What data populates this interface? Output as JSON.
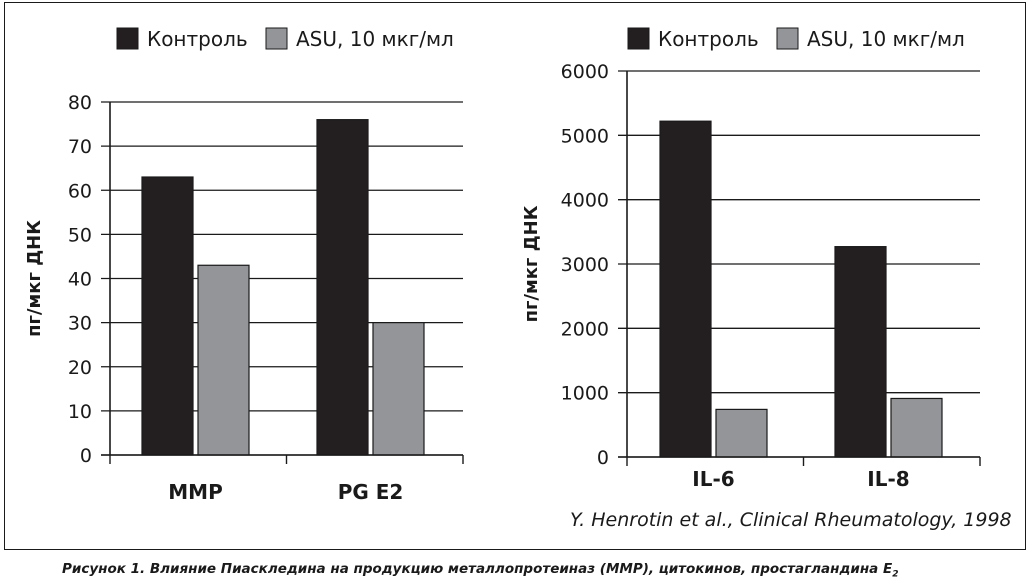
{
  "chart_data": [
    {
      "type": "bar",
      "categories": [
        "MMP",
        "PG E2"
      ],
      "series": [
        {
          "name": "Контроль",
          "values": [
            63,
            76
          ]
        },
        {
          "name": "ASU, 10 мкг/мл",
          "values": [
            43,
            30
          ]
        }
      ],
      "ylabel": "пг/мкг ДНК",
      "ylim": [
        0,
        80
      ],
      "yticks": [
        0,
        10,
        20,
        30,
        40,
        50,
        60,
        70,
        80
      ],
      "grid": true,
      "legend": "top"
    },
    {
      "type": "bar",
      "categories": [
        "IL-6",
        "IL-8"
      ],
      "series": [
        {
          "name": "Контроль",
          "values": [
            5220,
            3270
          ]
        },
        {
          "name": "ASU, 10 мкг/мл",
          "values": [
            740,
            910
          ]
        }
      ],
      "ylabel": "пг/мкг ДНК",
      "ylim": [
        0,
        6000
      ],
      "yticks": [
        0,
        1000,
        2000,
        3000,
        4000,
        5000,
        6000
      ],
      "grid": true,
      "legend": "top"
    }
  ],
  "colors": {
    "control": "#231f20",
    "asu": "#939598",
    "axis": "#1a1a1a"
  },
  "source": "Y. Henrotin et al., Clinical Rheumatology, 1998",
  "caption": {
    "text": "Рисунок 1.  Влияние Пиаскледина на продукцию металлопротеиназ (ММР), цитокинов, простагландина E",
    "subscript": "2"
  }
}
